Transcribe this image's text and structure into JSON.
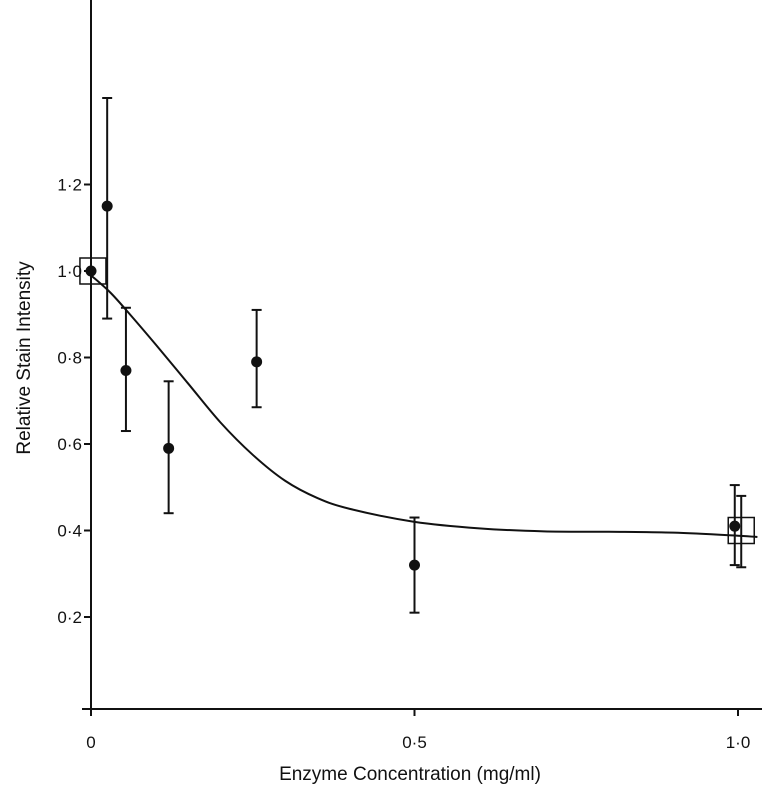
{
  "chart_data": {
    "type": "scatter",
    "title": "",
    "xlabel": "Enzyme Concentration (mg/ml)",
    "ylabel": "Relative Stain Intensity",
    "xlim": [
      0,
      1.03
    ],
    "ylim": [
      0,
      1.6
    ],
    "grid": false,
    "x_ticks": [
      {
        "value": 0,
        "label": "0"
      },
      {
        "value": 0.5,
        "label": "0·5"
      },
      {
        "value": 1.0,
        "label": "1·0"
      }
    ],
    "y_ticks": [
      {
        "value": 0.2,
        "label": "0·2"
      },
      {
        "value": 0.4,
        "label": "0·4"
      },
      {
        "value": 0.6,
        "label": "0·6"
      },
      {
        "value": 0.8,
        "label": "0·8"
      },
      {
        "value": 1.0,
        "label": "1·0"
      },
      {
        "value": 1.2,
        "label": "1·2"
      }
    ],
    "points": [
      {
        "x": 0.0,
        "y": 1.0,
        "err_high": 1.0,
        "err_low": 1.0
      },
      {
        "x": 0.025,
        "y": 1.15,
        "err_high": 1.4,
        "err_low": 0.89
      },
      {
        "x": 0.054,
        "y": 0.77,
        "err_high": 0.915,
        "err_low": 0.63
      },
      {
        "x": 0.12,
        "y": 0.59,
        "err_high": 0.745,
        "err_low": 0.44
      },
      {
        "x": 0.256,
        "y": 0.79,
        "err_high": 0.91,
        "err_low": 0.685
      },
      {
        "x": 0.5,
        "y": 0.32,
        "err_high": 0.43,
        "err_low": 0.21
      },
      {
        "x": 0.995,
        "y": 0.41,
        "err_high": 0.505,
        "err_low": 0.32
      }
    ],
    "extra_error_bars": [
      {
        "x": 1.005,
        "err_high": 0.48,
        "err_low": 0.315
      }
    ],
    "squares": [
      {
        "x": 0.003,
        "y": 1.0
      },
      {
        "x": 1.005,
        "y": 0.4
      }
    ],
    "fit_curve": [
      [
        0,
        0.99
      ],
      [
        0.03,
        0.95
      ],
      [
        0.06,
        0.9
      ],
      [
        0.1,
        0.83
      ],
      [
        0.15,
        0.74
      ],
      [
        0.2,
        0.65
      ],
      [
        0.25,
        0.575
      ],
      [
        0.3,
        0.515
      ],
      [
        0.35,
        0.475
      ],
      [
        0.4,
        0.45
      ],
      [
        0.5,
        0.42
      ],
      [
        0.6,
        0.405
      ],
      [
        0.7,
        0.398
      ],
      [
        0.8,
        0.397
      ],
      [
        0.9,
        0.395
      ],
      [
        1.0,
        0.388
      ],
      [
        1.03,
        0.385
      ]
    ]
  }
}
